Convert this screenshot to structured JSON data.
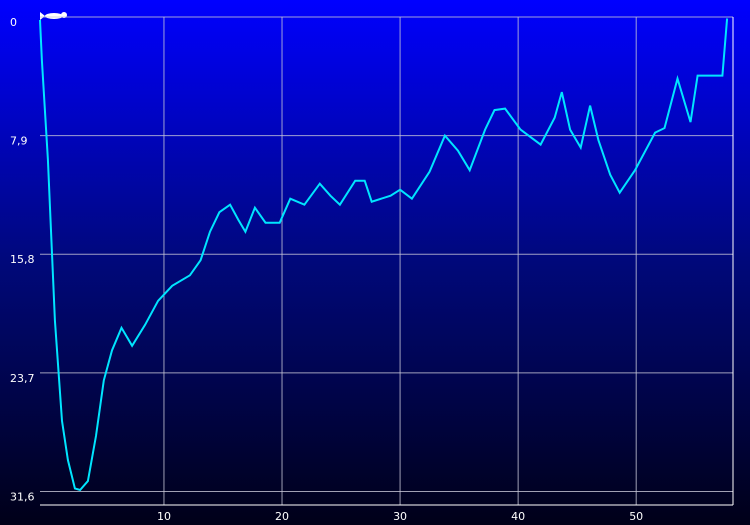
{
  "chart_data": {
    "type": "line",
    "x": [
      -0.5,
      -0.34,
      0.17,
      0.76,
      1.36,
      1.86,
      2.46,
      2.9,
      3.56,
      4.24,
      4.9,
      5.6,
      6.4,
      7.3,
      8.4,
      9.5,
      10.7,
      12.2,
      13.1,
      13.9,
      14.7,
      15.6,
      16.3,
      16.9,
      17.7,
      18.6,
      19.8,
      20.7,
      21.9,
      23.2,
      24.1,
      24.9,
      26.2,
      27.0,
      27.6,
      29.2,
      30.0,
      31.0,
      32.5,
      33.8,
      34.9,
      35.9,
      37.2,
      38.0,
      38.9,
      40.2,
      41.9,
      43.1,
      43.7,
      44.4,
      45.3,
      46.1,
      46.8,
      47.8,
      48.6,
      49.9,
      51.6,
      52.4,
      53.5,
      54.6,
      55.2,
      57.3,
      57.7
    ],
    "values": [
      0.2,
      2.9,
      9.5,
      20.2,
      26.9,
      29.5,
      31.4,
      31.5,
      30.9,
      27.9,
      24.2,
      22.2,
      20.7,
      21.9,
      20.5,
      18.9,
      17.9,
      17.2,
      16.2,
      14.3,
      13.0,
      12.5,
      13.5,
      14.3,
      12.7,
      13.7,
      13.7,
      12.1,
      12.5,
      11.1,
      11.9,
      12.5,
      10.9,
      10.9,
      12.3,
      11.9,
      11.5,
      12.1,
      10.3,
      7.9,
      8.9,
      10.2,
      7.5,
      6.2,
      6.1,
      7.5,
      8.5,
      6.7,
      5.0,
      7.5,
      8.7,
      5.9,
      8.2,
      10.5,
      11.7,
      10.2,
      7.7,
      7.4,
      4.1,
      7.0,
      3.9,
      3.9,
      0.1
    ],
    "color": "#00e5ff",
    "xlim": [
      -0.5,
      58.2
    ],
    "xticks": [
      10,
      20,
      30,
      40,
      50
    ],
    "ylim": [
      0,
      32.5
    ],
    "y_inverted": true,
    "yticks": [
      0,
      {
        "value": 7.9,
        "label": "7,9"
      },
      {
        "value": 15.8,
        "label": "15,8"
      },
      {
        "value": 23.7,
        "label": "23,7"
      },
      {
        "value": 31.6,
        "label": "31,6"
      }
    ],
    "grid": true
  }
}
